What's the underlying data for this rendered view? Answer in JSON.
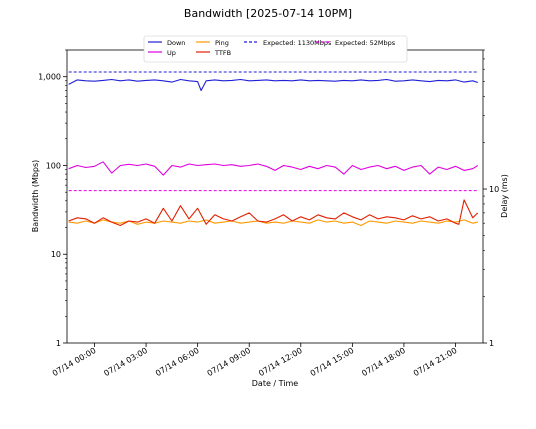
{
  "chart_data": {
    "type": "line",
    "title": "Bandwidth [2025-07-14 10PM]",
    "xlabel": "Date / Time",
    "ylabel_left": "Bandwidth (Mbps)",
    "ylabel_right": "Delay (ms)",
    "x_ticks": [
      "07/14 00:00",
      "07/14 03:00",
      "07/14 06:00",
      "07/14 09:00",
      "07/14 12:00",
      "07/14 15:00",
      "07/14 18:00",
      "07/14 21:00"
    ],
    "x_range_hours": [
      -1.6,
      22.6
    ],
    "left_axis": {
      "scale": "log",
      "ylim": [
        1,
        2000
      ],
      "ticks": [
        "1",
        "10",
        "100",
        "1,000"
      ]
    },
    "right_axis": {
      "scale": "log",
      "ylim": [
        1,
        80
      ],
      "ticks": [
        "1",
        "10"
      ]
    },
    "legend": {
      "placement": "top-center",
      "entries": [
        {
          "label": "Down",
          "color": "#1f1fd6",
          "style": "solid"
        },
        {
          "label": "Up",
          "color": "#e000e0",
          "style": "solid"
        },
        {
          "label": "Ping",
          "color": "#ff9900",
          "style": "solid"
        },
        {
          "label": "TTFB",
          "color": "#e02000",
          "style": "solid"
        },
        {
          "label": "Expected: 1130Mbps",
          "color": "#1f1fd6",
          "style": "dashed"
        },
        {
          "label": "Expected: 52Mbps",
          "color": "#e000e0",
          "style": "dashed"
        }
      ]
    },
    "expected_lines": [
      {
        "name": "Expected: 1130Mbps",
        "value": 1130,
        "axis": "left",
        "color": "#1f1fd6"
      },
      {
        "name": "Expected: 52Mbps",
        "value": 52,
        "axis": "left",
        "color": "#e000e0"
      }
    ],
    "series": [
      {
        "name": "Down",
        "axis": "left",
        "color": "#1f1fd6",
        "x": [
          -1.5,
          -1,
          -0.5,
          0,
          0.5,
          1,
          1.5,
          2,
          2.5,
          3,
          3.5,
          4,
          4.5,
          5,
          5.5,
          6,
          6.2,
          6.5,
          7,
          7.5,
          8,
          8.5,
          9,
          9.5,
          10,
          10.5,
          11,
          11.5,
          12,
          12.5,
          13,
          13.5,
          14,
          14.5,
          15,
          15.5,
          16,
          16.5,
          17,
          17.5,
          18,
          18.5,
          19,
          19.5,
          20,
          20.5,
          21,
          21.5,
          22,
          22.3
        ],
        "values": [
          820,
          920,
          900,
          890,
          910,
          930,
          900,
          920,
          890,
          910,
          920,
          900,
          870,
          930,
          900,
          880,
          700,
          900,
          920,
          900,
          910,
          930,
          900,
          910,
          920,
          900,
          910,
          900,
          920,
          900,
          910,
          900,
          890,
          910,
          900,
          920,
          900,
          910,
          930,
          890,
          900,
          920,
          900,
          880,
          910,
          900,
          920,
          870,
          900,
          860
        ]
      },
      {
        "name": "Up",
        "axis": "left",
        "color": "#e000e0",
        "x": [
          -1.5,
          -1,
          -0.5,
          0,
          0.5,
          1,
          1.5,
          2,
          2.5,
          3,
          3.5,
          4,
          4.5,
          5,
          5.5,
          6,
          6.5,
          7,
          7.5,
          8,
          8.5,
          9,
          9.5,
          10,
          10.5,
          11,
          11.5,
          12,
          12.5,
          13,
          13.5,
          14,
          14.5,
          15,
          15.5,
          16,
          16.5,
          17,
          17.5,
          18,
          18.5,
          19,
          19.5,
          20,
          20.5,
          21,
          21.5,
          22,
          22.3
        ],
        "values": [
          92,
          100,
          95,
          98,
          110,
          82,
          100,
          103,
          100,
          104,
          98,
          78,
          100,
          96,
          104,
          100,
          102,
          104,
          100,
          102,
          98,
          100,
          104,
          98,
          88,
          100,
          96,
          90,
          98,
          92,
          100,
          96,
          80,
          100,
          90,
          96,
          100,
          92,
          98,
          88,
          96,
          100,
          80,
          96,
          90,
          98,
          88,
          92,
          100
        ]
      },
      {
        "name": "Ping",
        "axis": "right",
        "color": "#ff9900",
        "x": [
          -1.5,
          -1,
          -0.5,
          0,
          0.5,
          1,
          1.5,
          2,
          2.5,
          3,
          3.5,
          4,
          4.5,
          5,
          5.5,
          6,
          6.5,
          7,
          7.5,
          8,
          8.5,
          9,
          9.5,
          10,
          10.5,
          11,
          11.5,
          12,
          12.5,
          13,
          13.5,
          14,
          14.5,
          15,
          15.5,
          16,
          16.5,
          17,
          17.5,
          18,
          18.5,
          19,
          19.5,
          20,
          20.5,
          21,
          21.5,
          22,
          22.3
        ],
        "values": [
          6.1,
          6.0,
          6.2,
          6.0,
          6.3,
          6.1,
          6.0,
          6.2,
          5.9,
          6.1,
          6.0,
          6.2,
          6.1,
          6.0,
          6.2,
          6.1,
          6.3,
          6.0,
          6.1,
          6.2,
          6.0,
          6.1,
          6.2,
          6.0,
          6.1,
          6.0,
          6.2,
          6.1,
          6.0,
          6.3,
          6.1,
          6.2,
          6.0,
          6.1,
          5.8,
          6.2,
          6.1,
          6.0,
          6.2,
          6.1,
          6.0,
          6.2,
          6.1,
          6.0,
          6.2,
          6.1,
          6.3,
          6.0,
          6.1
        ]
      },
      {
        "name": "TTFB",
        "axis": "right",
        "color": "#e02000",
        "x": [
          -1.5,
          -1,
          -0.5,
          0,
          0.5,
          1,
          1.5,
          2,
          2.5,
          3,
          3.5,
          4,
          4.5,
          5,
          5.5,
          6,
          6.5,
          7,
          7.5,
          8,
          8.5,
          9,
          9.5,
          10,
          10.5,
          11,
          11.5,
          12,
          12.5,
          13,
          13.5,
          14,
          14.5,
          15,
          15.5,
          16,
          16.5,
          17,
          17.5,
          18,
          18.5,
          19,
          19.5,
          20,
          20.5,
          21,
          21.2,
          21.5,
          22,
          22.3
        ],
        "values": [
          6.2,
          6.5,
          6.4,
          6.0,
          6.5,
          6.1,
          5.8,
          6.2,
          6.1,
          6.4,
          6.0,
          7.5,
          6.2,
          7.8,
          6.4,
          7.5,
          5.9,
          6.8,
          6.4,
          6.2,
          6.6,
          7.0,
          6.2,
          6.1,
          6.4,
          6.8,
          6.2,
          6.6,
          6.3,
          6.8,
          6.5,
          6.4,
          7.0,
          6.6,
          6.3,
          6.8,
          6.4,
          6.6,
          6.5,
          6.3,
          6.7,
          6.4,
          6.6,
          6.2,
          6.4,
          6.0,
          5.9,
          8.5,
          6.5,
          7.0
        ]
      }
    ]
  }
}
